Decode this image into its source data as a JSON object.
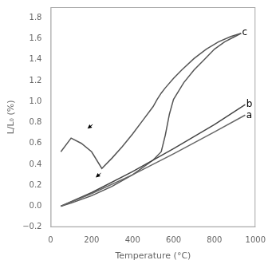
{
  "chart_data": {
    "type": "line",
    "xlabel": "Temperature (°C)",
    "ylabel": "L/L₀ (%)",
    "xlim": [
      0,
      1000
    ],
    "ylim": [
      -0.2,
      1.9
    ],
    "xticks": [
      0,
      200,
      400,
      600,
      800,
      1000
    ],
    "yticks": [
      {
        "value": -0.2,
        "label": "−0.2"
      },
      {
        "value": 0.0,
        "label": "0.0"
      },
      0.2,
      0.4,
      0.6,
      0.8,
      {
        "value": 1.0,
        "label": "1.0"
      },
      1.2,
      1.4,
      1.6,
      1.8
    ],
    "grid": false,
    "series": [
      {
        "x": [
          50,
          200,
          400,
          600,
          800,
          950
        ],
        "values": [
          0.0,
          0.12,
          0.3,
          0.5,
          0.71,
          0.87
        ],
        "color": "#666666"
      },
      {
        "x": [
          50,
          200,
          400,
          600,
          800,
          950
        ],
        "values": [
          0.0,
          0.13,
          0.33,
          0.55,
          0.78,
          0.97
        ],
        "color": "#444444"
      },
      {
        "x": [
          50,
          100,
          200,
          300,
          400,
          500,
          540,
          560,
          580,
          600,
          650,
          700,
          750,
          800,
          850,
          900,
          930
        ],
        "values": [
          0.0,
          0.03,
          0.1,
          0.19,
          0.3,
          0.44,
          0.52,
          0.68,
          0.88,
          1.02,
          1.18,
          1.3,
          1.4,
          1.5,
          1.57,
          1.62,
          1.65
        ],
        "color": "#555555"
      },
      {
        "x": [
          930,
          880,
          820,
          760,
          700,
          640,
          600,
          560,
          540,
          520,
          500,
          450,
          400,
          350,
          300,
          250,
          200,
          150,
          100,
          50
        ],
        "values": [
          1.65,
          1.62,
          1.57,
          1.5,
          1.41,
          1.3,
          1.22,
          1.13,
          1.08,
          1.02,
          0.95,
          0.82,
          0.69,
          0.57,
          0.46,
          0.36,
          0.52,
          0.6,
          0.65,
          0.52
        ],
        "color": "#555555"
      }
    ],
    "annotations": [
      {
        "text": "a",
        "x": 955,
        "y": 0.865
      },
      {
        "text": "b",
        "x": 955,
        "y": 0.975
      },
      {
        "text": "c",
        "x": 935,
        "y": 1.66
      }
    ],
    "arrows": [
      {
        "x": [
          205,
          180
        ],
        "y": [
          0.78,
          0.74
        ]
      },
      {
        "x": [
          245,
          220
        ],
        "y": [
          0.315,
          0.275
        ]
      }
    ]
  }
}
